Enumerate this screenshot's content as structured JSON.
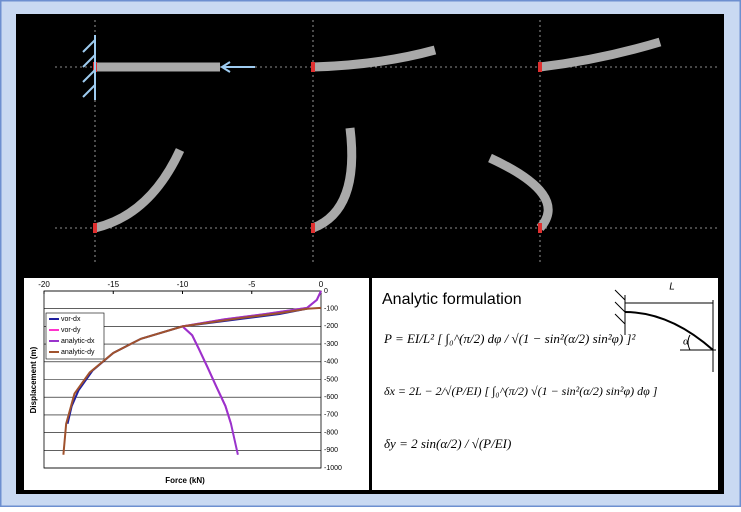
{
  "chart_data": {
    "type": "line",
    "xlabel": "Force (kN)",
    "ylabel": "Displacement (m)",
    "xlim": [
      -20,
      0
    ],
    "ylim": [
      -1000,
      0
    ],
    "xticks": [
      -20,
      -15,
      -10,
      -5,
      0
    ],
    "yticks": [
      0,
      -100,
      -200,
      -300,
      -400,
      -500,
      -600,
      -700,
      -800,
      -900,
      -1000
    ],
    "grid": "y",
    "legend": "upper left",
    "series": [
      {
        "name": "vor-dx",
        "color": "#1f1f9f",
        "x": [
          -1,
          -3,
          -6,
          -10,
          -13,
          -15,
          -16.5,
          -17.5,
          -18,
          -18.3
        ],
        "values": [
          -100,
          -130,
          -160,
          -200,
          -270,
          -350,
          -450,
          -560,
          -650,
          -750
        ]
      },
      {
        "name": "vor-dy",
        "color": "#ff33cc",
        "x": [
          0,
          -0.3,
          -1,
          -4,
          -7,
          -10,
          -9.3,
          -8.8,
          -8.2,
          -7.5,
          -6.9,
          -6.5
        ],
        "values": [
          0,
          -50,
          -95,
          -130,
          -160,
          -200,
          -250,
          -330,
          -430,
          -550,
          -650,
          -750
        ]
      },
      {
        "name": "analytic-dx",
        "color": "#9933cc",
        "x": [
          0,
          -0.3,
          -1,
          -4,
          -7,
          -10,
          -9.3,
          -8.8,
          -8.2,
          -7.5,
          -6.9,
          -6.5,
          -6.0
        ],
        "values": [
          0,
          -50,
          -95,
          -130,
          -160,
          -200,
          -250,
          -330,
          -430,
          -550,
          -650,
          -750,
          -925
        ]
      },
      {
        "name": "analytic-dy",
        "color": "#a0522d",
        "x": [
          0,
          -1,
          -3,
          -6,
          -10,
          -13,
          -15,
          -16.7,
          -17.8,
          -18.4,
          -18.6
        ],
        "values": [
          -95,
          -100,
          -125,
          -155,
          -200,
          -270,
          -350,
          -460,
          -580,
          -750,
          -925
        ]
      }
    ]
  },
  "formulation": {
    "title": "Analytic formulation",
    "equations": [
      "P = EI/L² [ ∫₀^(π/2) dφ / √(1 − sin²(α/2) sin²φ) ]²",
      "δx = 2L − 2/√(P/EI) [ ∫₀^(π/2) √(1 − sin²(α/2) sin²φ) dφ ]",
      "δy = 2 sin(α/2) / √(P/EI)"
    ],
    "diagram_labels": [
      "L",
      "α"
    ]
  }
}
